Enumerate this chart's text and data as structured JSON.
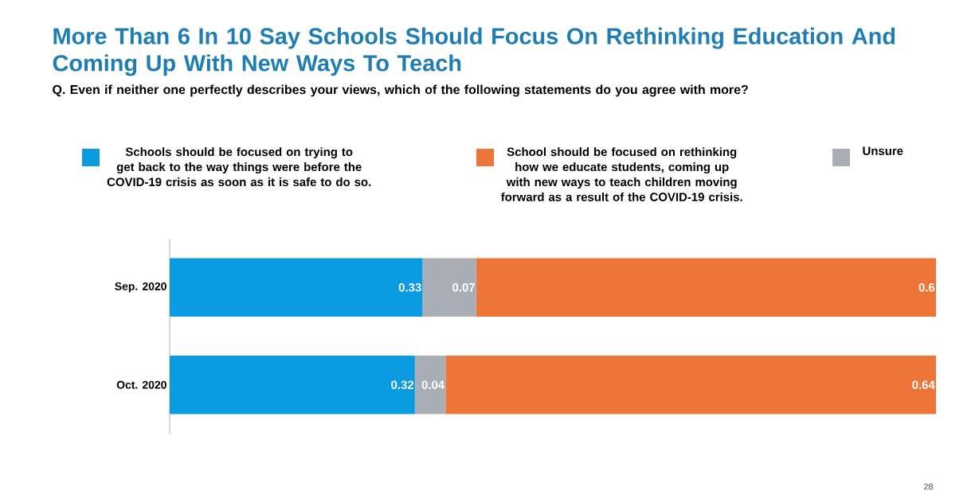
{
  "chart_data": {
    "type": "bar",
    "orientation": "horizontal",
    "stacked": true,
    "data_labels": true,
    "legend": "top",
    "title": "More Than 6 In 10 Say Schools Should Focus On Rethinking Education And Coming Up With New Ways To Teach",
    "subtitle": "Q. Even if neither one perfectly describes your views, which of the following statements do you agree with more?",
    "categories": [
      "Sep. 2020",
      "Oct. 2020"
    ],
    "series": [
      {
        "name": "Schools should be focused on trying to get back to the way things were before the COVID-19 crisis as soon as it is safe to do so.",
        "color": "#0a9be0",
        "values": [
          0.33,
          0.32
        ]
      },
      {
        "name": "Unsure",
        "color": "#a9adb5",
        "values": [
          0.07,
          0.04
        ]
      },
      {
        "name": "School should be focused on rethinking how we educate students, coming up with new ways to teach children moving forward as a result of the COVID-19 crisis.",
        "color": "#ed7537",
        "values": [
          0.6,
          0.64
        ]
      }
    ],
    "annotations": [
      "28"
    ]
  }
}
